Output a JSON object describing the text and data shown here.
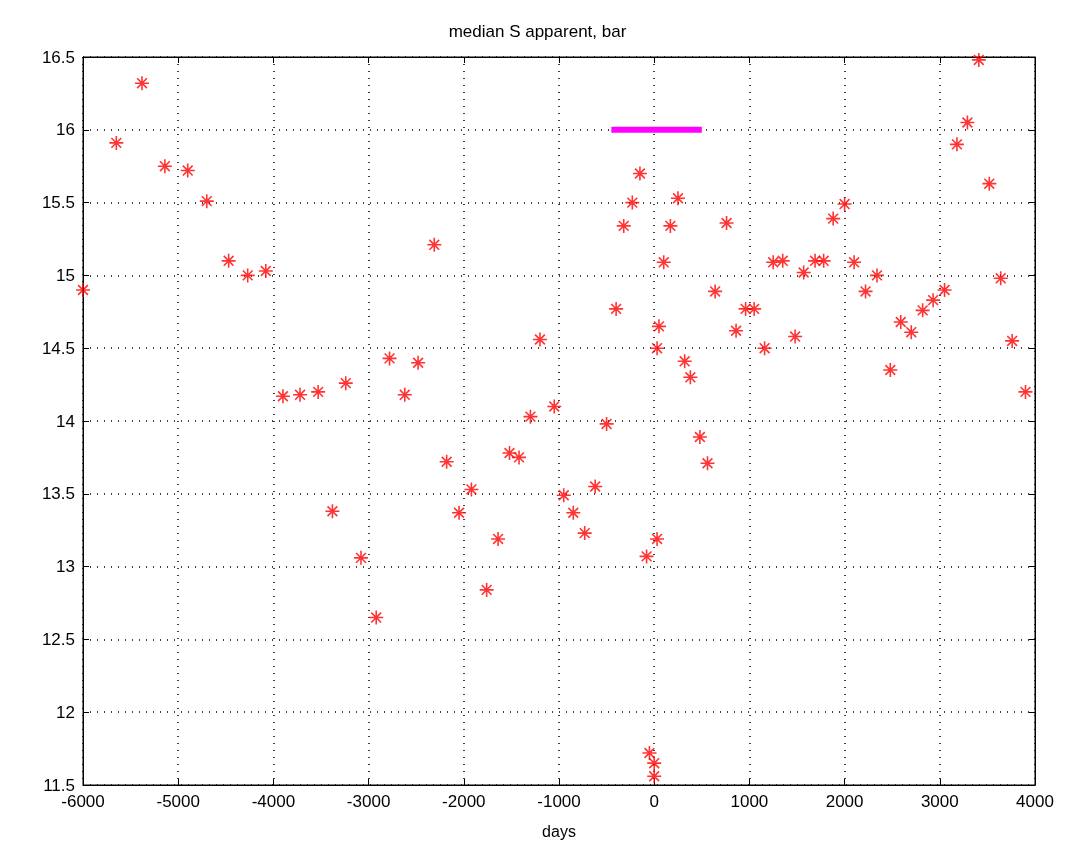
{
  "chart_data": {
    "type": "scatter",
    "title": "median S apparent, bar",
    "xlabel": "days",
    "xlim": [
      -6000,
      4000
    ],
    "xticks": [
      -6000,
      -5000,
      -4000,
      -3000,
      -2000,
      -1000,
      0,
      1000,
      2000,
      3000,
      4000
    ],
    "ylim": [
      11.5,
      16.5
    ],
    "yticks": [
      11.5,
      12,
      12.5,
      13,
      13.5,
      14,
      14.5,
      15,
      15.5,
      16,
      16.5
    ],
    "grid": true,
    "series": [
      {
        "color": "#ff0000",
        "marker": "cross",
        "x": [
          -6000,
          -5650,
          -5380,
          -5140,
          -4900,
          -4700,
          -4470,
          -4270,
          -4080,
          -3900,
          -3720,
          -3530,
          -3240,
          -3380,
          -3080,
          -2920,
          -2780,
          -2620,
          -2480,
          -2310,
          -2180,
          -2050,
          -1920,
          -1760,
          -1640,
          -1520,
          -1420,
          -1300,
          -1200,
          -1050,
          -950,
          -850,
          -730,
          -620,
          -500,
          -400,
          -320,
          -230,
          -150,
          -80,
          -50,
          0,
          0,
          30,
          30,
          50,
          100,
          170,
          250,
          320,
          380,
          480,
          560,
          640,
          760,
          860,
          960,
          1050,
          1160,
          1250,
          1350,
          1480,
          1570,
          1690,
          1780,
          1880,
          2000,
          2100,
          2220,
          2340,
          2480,
          2590,
          2700,
          2820,
          2930,
          3050,
          3180,
          3290,
          3410,
          3520,
          3640,
          3760,
          3900
        ],
        "values": [
          14.9,
          15.91,
          16.32,
          15.75,
          15.72,
          15.51,
          15.1,
          15.0,
          15.03,
          14.17,
          14.18,
          14.2,
          14.26,
          13.38,
          13.06,
          12.65,
          14.43,
          14.18,
          14.4,
          15.21,
          13.72,
          13.37,
          13.53,
          12.84,
          13.19,
          13.78,
          13.75,
          14.03,
          14.56,
          14.1,
          13.49,
          13.37,
          13.23,
          13.55,
          13.98,
          14.77,
          15.34,
          15.5,
          15.7,
          13.07,
          11.72,
          11.65,
          11.56,
          13.19,
          14.5,
          14.65,
          15.09,
          15.34,
          15.53,
          14.41,
          14.3,
          13.89,
          13.71,
          14.89,
          15.36,
          14.62,
          14.77,
          14.77,
          14.5,
          15.09,
          15.1,
          14.58,
          15.02,
          15.1,
          15.1,
          15.39,
          15.49,
          15.09,
          14.89,
          15.0,
          14.35,
          14.68,
          14.61,
          14.76,
          14.83,
          14.9,
          15.9,
          16.05,
          16.48,
          15.63,
          14.98,
          14.55,
          14.2
        ]
      },
      {
        "type": "line",
        "color": "#ff00ff",
        "marker": "none",
        "line_style": "solid",
        "x": [
          -450,
          500
        ],
        "values": [
          16,
          16
        ]
      }
    ]
  }
}
